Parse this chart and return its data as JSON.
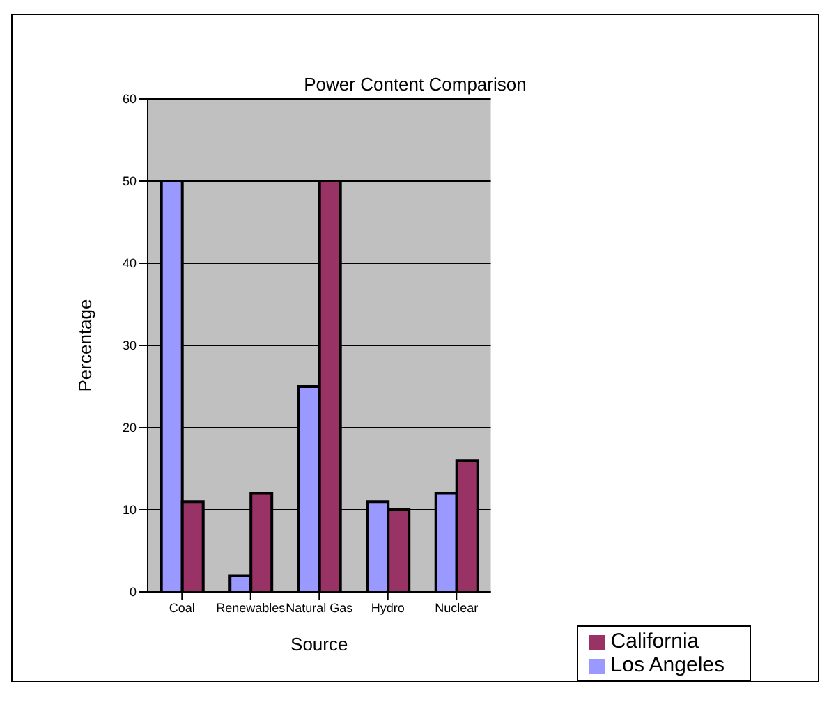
{
  "chart_data": {
    "type": "bar",
    "title": "Power Content Comparison",
    "xlabel": "Source",
    "ylabel": "Percentage",
    "categories": [
      "Coal",
      "Renewables",
      "Natural Gas",
      "Hydro",
      "Nuclear"
    ],
    "series": [
      {
        "name": "Los Angeles",
        "color": "#9999ff",
        "values": [
          50,
          2,
          25,
          11,
          12
        ]
      },
      {
        "name": "California",
        "color": "#993366",
        "values": [
          11,
          12,
          50,
          10,
          16
        ]
      }
    ],
    "ylim": [
      0,
      60
    ],
    "yticks": [
      0,
      10,
      20,
      30,
      40,
      50,
      60
    ],
    "grid": "y",
    "legend": "bottom right"
  }
}
